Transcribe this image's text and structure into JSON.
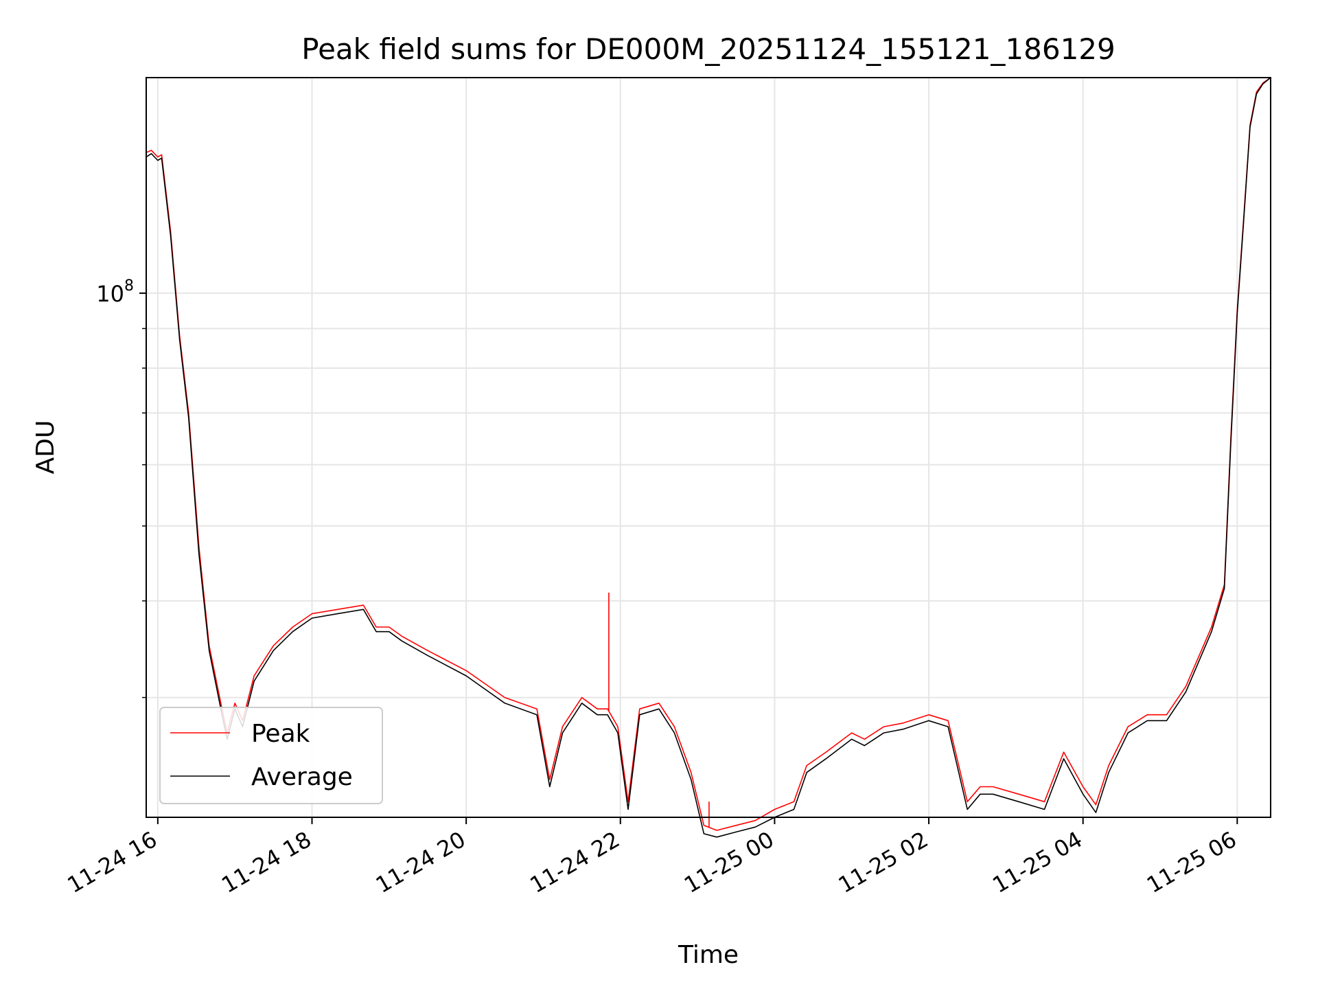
{
  "chart_data": {
    "type": "line",
    "title": "Peak field sums for DE000M_20251124_155121_186129",
    "xlabel": "Time",
    "ylabel": "ADU",
    "yscale": "log",
    "ytick_label": {
      "base": "10",
      "exp": "8"
    },
    "grid": true,
    "legend_position": "lower-left",
    "x_ticks": [
      "11-24 16",
      "11-24 18",
      "11-24 20",
      "11-24 22",
      "11-25 00",
      "11-25 02",
      "11-25 04",
      "11-25 06"
    ],
    "x_tick_values": [
      "2025-11-24 16:00",
      "2025-11-24 18:00",
      "2025-11-24 20:00",
      "2025-11-24 22:00",
      "2025-11-25 00:00",
      "2025-11-25 02:00",
      "2025-11-25 04:00",
      "2025-11-25 06:00"
    ],
    "xlim": [
      "2025-11-24 15:51",
      "2025-11-25 06:26"
    ],
    "ylim": [
      21000000,
      190000000
    ],
    "x": [
      "2025-11-24 15:51",
      "2025-11-24 15:55",
      "2025-11-24 16:00",
      "2025-11-24 16:03",
      "2025-11-24 16:10",
      "2025-11-24 16:17",
      "2025-11-24 16:24",
      "2025-11-24 16:32",
      "2025-11-24 16:40",
      "2025-11-24 16:50",
      "2025-11-24 16:54",
      "2025-11-24 17:00",
      "2025-11-24 17:06",
      "2025-11-24 17:15",
      "2025-11-24 17:30",
      "2025-11-24 17:45",
      "2025-11-24 18:00",
      "2025-11-24 18:20",
      "2025-11-24 18:40",
      "2025-11-24 18:50",
      "2025-11-24 19:00",
      "2025-11-24 19:10",
      "2025-11-24 19:30",
      "2025-11-24 20:00",
      "2025-11-24 20:30",
      "2025-11-24 20:55",
      "2025-11-24 21:05",
      "2025-11-24 21:15",
      "2025-11-24 21:30",
      "2025-11-24 21:42",
      "2025-11-24 21:50",
      "2025-11-24 21:58",
      "2025-11-24 22:06",
      "2025-11-24 22:15",
      "2025-11-24 22:30",
      "2025-11-24 22:42",
      "2025-11-24 22:55",
      "2025-11-24 23:05",
      "2025-11-24 23:15",
      "2025-11-24 23:30",
      "2025-11-24 23:45",
      "2025-11-25 00:00",
      "2025-11-25 00:15",
      "2025-11-25 00:25",
      "2025-11-25 00:40",
      "2025-11-25 01:00",
      "2025-11-25 01:10",
      "2025-11-25 01:25",
      "2025-11-25 01:40",
      "2025-11-25 02:00",
      "2025-11-25 02:15",
      "2025-11-25 02:30",
      "2025-11-25 02:40",
      "2025-11-25 02:50",
      "2025-11-25 03:10",
      "2025-11-25 03:30",
      "2025-11-25 03:45",
      "2025-11-25 04:00",
      "2025-11-25 04:10",
      "2025-11-25 04:20",
      "2025-11-25 04:35",
      "2025-11-25 04:50",
      "2025-11-25 05:05",
      "2025-11-25 05:20",
      "2025-11-25 05:40",
      "2025-11-25 05:50",
      "2025-11-25 05:55",
      "2025-11-25 06:00",
      "2025-11-25 06:05",
      "2025-11-25 06:10",
      "2025-11-25 06:15",
      "2025-11-25 06:20",
      "2025-11-25 06:26"
    ],
    "series": [
      {
        "name": "Peak",
        "color": "#ff0000",
        "values": [
          152000000,
          153000000,
          150000000,
          151000000,
          120000000,
          88000000,
          70000000,
          47000000,
          35000000,
          29000000,
          27000000,
          29500000,
          28000000,
          32000000,
          35000000,
          37000000,
          38500000,
          39000000,
          39500000,
          37000000,
          37000000,
          36000000,
          34500000,
          32500000,
          30000000,
          29000000,
          23500000,
          27500000,
          30000000,
          29000000,
          29000000,
          27500000,
          22000000,
          29000000,
          29500000,
          27500000,
          24000000,
          20500000,
          20200000,
          20500000,
          20800000,
          21500000,
          22000000,
          24500000,
          25500000,
          27000000,
          26500000,
          27500000,
          27800000,
          28500000,
          28000000,
          22000000,
          23000000,
          23000000,
          22500000,
          22000000,
          25500000,
          23000000,
          21800000,
          24500000,
          27500000,
          28500000,
          28500000,
          31000000,
          37000000,
          42000000,
          65000000,
          95000000,
          125000000,
          165000000,
          182000000,
          187000000,
          190000000
        ],
        "spikes": [
          {
            "x": "2025-11-24 21:51",
            "value": 41000000
          },
          {
            "x": "2025-11-24 23:09",
            "value": 22000000
          }
        ]
      },
      {
        "name": "Average",
        "color": "#000000",
        "values": [
          150000000,
          151500000,
          148500000,
          149500000,
          118500000,
          87000000,
          69000000,
          46000000,
          34500000,
          28500000,
          26500000,
          29000000,
          27500000,
          31500000,
          34500000,
          36500000,
          38000000,
          38500000,
          39000000,
          36500000,
          36500000,
          35500000,
          34000000,
          32000000,
          29500000,
          28500000,
          23000000,
          27000000,
          29500000,
          28500000,
          28500000,
          27000000,
          21500000,
          28500000,
          29000000,
          27000000,
          23500000,
          20000000,
          19800000,
          20100000,
          20400000,
          21000000,
          21500000,
          24000000,
          25000000,
          26500000,
          26000000,
          27000000,
          27300000,
          28000000,
          27500000,
          21500000,
          22500000,
          22500000,
          22000000,
          21500000,
          25000000,
          22500000,
          21300000,
          24000000,
          27000000,
          28000000,
          28000000,
          30500000,
          36500000,
          41500000,
          64000000,
          94000000,
          124000000,
          164000000,
          181000000,
          186500000,
          190000000
        ]
      }
    ]
  }
}
